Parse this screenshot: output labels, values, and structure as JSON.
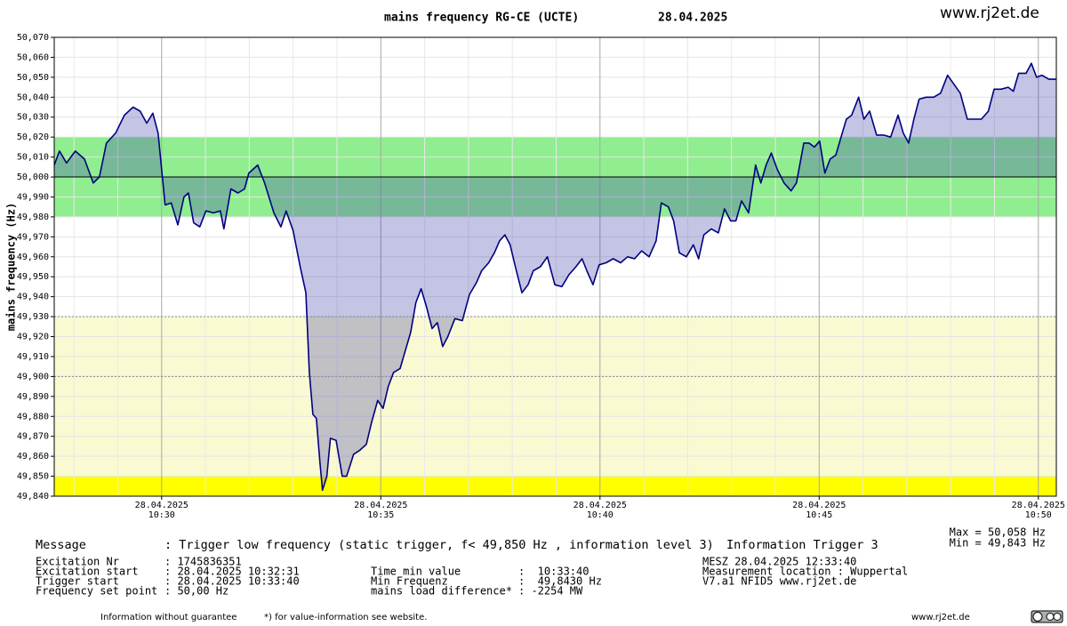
{
  "chart_data": {
    "type": "area-line",
    "title": "mains frequency RG-CE (UCTE)",
    "subtitle": "28.04.2025",
    "site": "www.rj2et.de",
    "y_label": "mains frequency (Hz)",
    "annotations": [
      "Max = 50,058 Hz",
      "Min = 49,843 Hz"
    ],
    "xlim": [
      627.55,
      650.41
    ],
    "xticks": [
      {
        "value": 630,
        "label": "28.04.2025 10:30"
      },
      {
        "value": 635,
        "label": "28.04.2025 10:35"
      },
      {
        "value": 640,
        "label": "28.04.2025 10:40"
      },
      {
        "value": 645,
        "label": "28.04.2025 10:45"
      },
      {
        "value": 650,
        "label": "28.04.2025 10:50"
      }
    ],
    "xminor_ticks": [
      628,
      629,
      631,
      632,
      633,
      634,
      636,
      637,
      638,
      639,
      641,
      642,
      643,
      644,
      646,
      647,
      648,
      649
    ],
    "ylim": [
      49.84,
      50.07
    ],
    "yticks": [
      {
        "value": 49.84,
        "label": "49,840"
      },
      {
        "value": 49.85,
        "label": "49,850"
      },
      {
        "value": 49.86,
        "label": "49,860"
      },
      {
        "value": 49.87,
        "label": "49,870"
      },
      {
        "value": 49.88,
        "label": "49,880"
      },
      {
        "value": 49.89,
        "label": "49,890"
      },
      {
        "value": 49.9,
        "label": "49,900"
      },
      {
        "value": 49.91,
        "label": "49,910"
      },
      {
        "value": 49.92,
        "label": "49,920"
      },
      {
        "value": 49.93,
        "label": "49,930"
      },
      {
        "value": 49.94,
        "label": "49,940"
      },
      {
        "value": 49.95,
        "label": "49,950"
      },
      {
        "value": 49.96,
        "label": "49,960"
      },
      {
        "value": 49.97,
        "label": "49,970"
      },
      {
        "value": 49.98,
        "label": "49,980"
      },
      {
        "value": 49.99,
        "label": "49,990"
      },
      {
        "value": 50.0,
        "label": "50,000"
      },
      {
        "value": 50.01,
        "label": "50,010"
      },
      {
        "value": 50.02,
        "label": "50,020"
      },
      {
        "value": 50.03,
        "label": "50,030"
      },
      {
        "value": 50.04,
        "label": "50,040"
      },
      {
        "value": 50.05,
        "label": "50,050"
      },
      {
        "value": 50.06,
        "label": "50,060"
      },
      {
        "value": 50.07,
        "label": "50,070"
      }
    ],
    "grid": true,
    "bands": [
      {
        "from": 49.98,
        "to": 50.02,
        "color": "#90ee90"
      },
      {
        "from": 49.85,
        "to": 49.93,
        "color": "#fafad2"
      },
      {
        "from": 49.84,
        "to": 49.85,
        "color": "#ffff00"
      }
    ],
    "reference_lines": [
      {
        "value": 50.0,
        "style": "solid"
      },
      {
        "value": 49.93,
        "style": "dotted"
      },
      {
        "value": 49.9,
        "style": "dotted"
      }
    ],
    "fill_to": 50.0,
    "fill_color": "rgba(60,60,170,0.3)",
    "x": [
      627.55,
      627.67,
      627.83,
      628.03,
      628.24,
      628.44,
      628.58,
      628.74,
      628.95,
      629.15,
      629.35,
      629.51,
      629.66,
      629.8,
      629.92,
      630.08,
      630.22,
      630.37,
      630.51,
      630.61,
      630.73,
      630.87,
      631.01,
      631.18,
      631.34,
      631.42,
      631.58,
      631.74,
      631.89,
      631.99,
      632.19,
      632.35,
      632.56,
      632.72,
      632.84,
      633.0,
      633.16,
      633.29,
      633.37,
      633.45,
      633.53,
      633.61,
      633.67,
      633.77,
      633.85,
      633.98,
      634.12,
      634.22,
      634.38,
      634.52,
      634.67,
      634.79,
      634.93,
      635.05,
      635.17,
      635.29,
      635.44,
      635.56,
      635.68,
      635.8,
      635.92,
      636.04,
      636.17,
      636.29,
      636.41,
      636.53,
      636.69,
      636.86,
      637.02,
      637.18,
      637.3,
      637.46,
      637.59,
      637.71,
      637.83,
      637.95,
      638.07,
      638.22,
      638.36,
      638.48,
      638.64,
      638.8,
      638.97,
      639.13,
      639.29,
      639.45,
      639.59,
      639.7,
      639.84,
      639.98,
      640.14,
      640.3,
      640.47,
      640.63,
      640.79,
      640.95,
      641.12,
      641.28,
      641.4,
      641.56,
      641.68,
      641.81,
      641.97,
      642.13,
      642.25,
      642.37,
      642.54,
      642.7,
      642.84,
      642.98,
      643.1,
      643.23,
      643.39,
      643.55,
      643.67,
      643.79,
      643.91,
      644.04,
      644.2,
      644.36,
      644.48,
      644.65,
      644.77,
      644.89,
      645.01,
      645.13,
      645.25,
      645.38,
      645.5,
      645.62,
      645.74,
      645.9,
      646.02,
      646.15,
      646.31,
      646.47,
      646.63,
      646.8,
      646.92,
      647.04,
      647.16,
      647.28,
      647.44,
      647.61,
      647.77,
      647.93,
      648.09,
      648.22,
      648.38,
      648.54,
      648.7,
      648.86,
      648.99,
      649.15,
      649.31,
      649.43,
      649.55,
      649.72,
      649.84,
      649.96,
      650.08,
      650.24,
      650.41
    ],
    "series": [
      {
        "name": "mains frequency",
        "color": "#000080",
        "values": [
          50.006,
          50.013,
          50.007,
          50.013,
          50.009,
          49.997,
          50.0,
          50.017,
          50.022,
          50.031,
          50.035,
          50.033,
          50.027,
          50.032,
          50.022,
          49.986,
          49.987,
          49.976,
          49.99,
          49.992,
          49.977,
          49.975,
          49.983,
          49.982,
          49.983,
          49.974,
          49.994,
          49.992,
          49.994,
          50.002,
          50.006,
          49.997,
          49.982,
          49.975,
          49.983,
          49.973,
          49.955,
          49.942,
          49.902,
          49.881,
          49.879,
          49.857,
          49.843,
          49.85,
          49.869,
          49.868,
          49.85,
          49.85,
          49.861,
          49.863,
          49.866,
          49.877,
          49.888,
          49.884,
          49.895,
          49.902,
          49.904,
          49.913,
          49.922,
          49.937,
          49.944,
          49.935,
          49.924,
          49.927,
          49.915,
          49.92,
          49.929,
          49.928,
          49.941,
          49.947,
          49.953,
          49.957,
          49.962,
          49.968,
          49.971,
          49.966,
          49.955,
          49.942,
          49.946,
          49.953,
          49.955,
          49.96,
          49.946,
          49.945,
          49.951,
          49.955,
          49.959,
          49.953,
          49.946,
          49.956,
          49.957,
          49.959,
          49.957,
          49.96,
          49.959,
          49.963,
          49.96,
          49.968,
          49.987,
          49.985,
          49.978,
          49.962,
          49.96,
          49.966,
          49.959,
          49.971,
          49.974,
          49.972,
          49.984,
          49.978,
          49.978,
          49.988,
          49.982,
          50.006,
          49.997,
          50.006,
          50.012,
          50.004,
          49.997,
          49.993,
          49.997,
          50.017,
          50.017,
          50.015,
          50.018,
          50.002,
          50.009,
          50.011,
          50.02,
          50.029,
          50.031,
          50.04,
          50.029,
          50.033,
          50.021,
          50.021,
          50.02,
          50.031,
          50.022,
          50.017,
          50.029,
          50.039,
          50.04,
          50.04,
          50.042,
          50.051,
          50.046,
          50.042,
          50.029,
          50.029,
          50.029,
          50.033,
          50.044,
          50.044,
          50.045,
          50.043,
          50.052,
          50.052,
          50.057,
          50.05,
          50.051,
          50.049,
          50.049
        ]
      }
    ]
  },
  "info": {
    "message_label": "Message",
    "message": ": Trigger low frequency (static trigger, f< 49,850 Hz , information level 3)",
    "trigger": "Information Trigger 3",
    "left": [
      [
        "Excitation Nr",
        ": 1745836351"
      ],
      [
        "Excitation start",
        ": 28.04.2025 10:32:31"
      ],
      [
        "Trigger start",
        ": 28.04.2025 10:33:40"
      ],
      [
        "Frequency set point",
        ": 50,00 Hz"
      ]
    ],
    "middle": [
      [
        "Time min value",
        ":  10:33:40"
      ],
      [
        "Min Frequenz",
        ":  49,8430 Hz"
      ],
      [
        "mains load difference*",
        ": -2254 MW"
      ]
    ],
    "right": [
      "MESZ 28.04.2025 12:33:40",
      "Measurement location : Wuppertal",
      "V7.a1 NFID5 www.rj2et.de"
    ],
    "footer": [
      "Information without guarantee",
      "*) for value-information see website.",
      "www.rj2et.de"
    ]
  }
}
